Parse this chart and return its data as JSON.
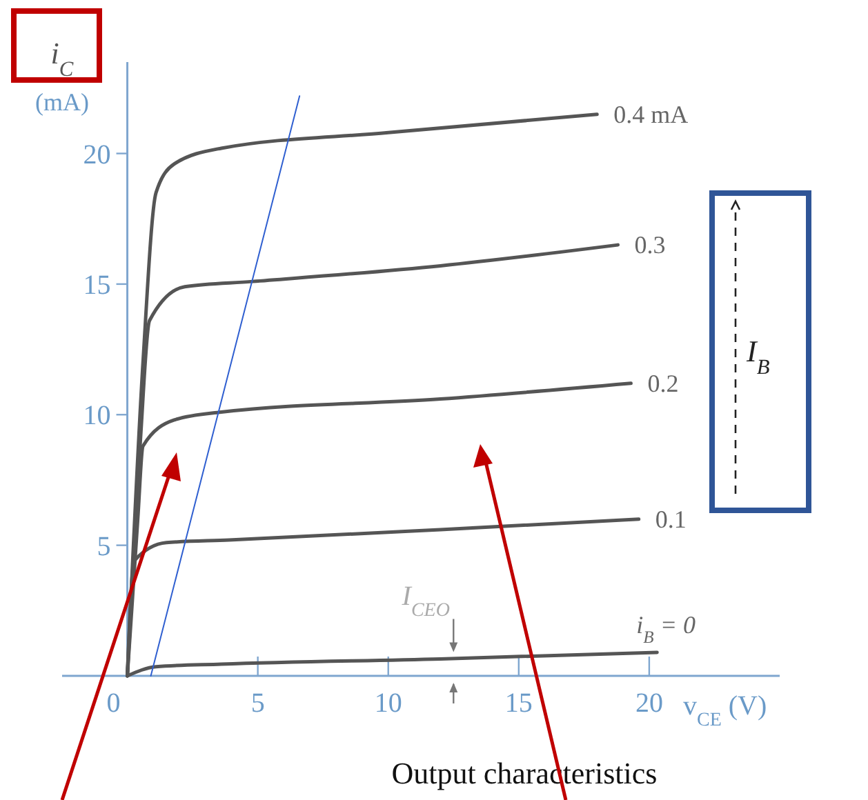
{
  "chart_data": {
    "type": "line",
    "xlabel": "v$_{CE}$ (V)",
    "ylabel": "i$_{C}$ (mA)",
    "xlim": [
      -2.5,
      25
    ],
    "ylim": [
      0,
      23.5
    ],
    "xticks": [
      0,
      5,
      10,
      15,
      20
    ],
    "yticks": [
      5,
      10,
      15,
      20
    ],
    "grid": false,
    "series": [
      {
        "name": "0.4 mA",
        "color": "#555555",
        "x": [
          0,
          0.6,
          1.1,
          1.8,
          3.6,
          10,
          18
        ],
        "values": [
          0,
          12,
          18.5,
          19.6,
          20.2,
          20.8,
          21.5
        ]
      },
      {
        "name": "0.3",
        "color": "#555555",
        "x": [
          0,
          0.5,
          0.85,
          2.2,
          4.8,
          12,
          18.8
        ],
        "values": [
          0,
          9,
          13.6,
          14.9,
          15.1,
          15.7,
          16.5
        ]
      },
      {
        "name": "0.2",
        "color": "#555555",
        "x": [
          0,
          0.4,
          0.6,
          1.8,
          3.6,
          12,
          19.3
        ],
        "values": [
          0,
          6,
          8.8,
          9.8,
          10.1,
          10.6,
          11.2
        ]
      },
      {
        "name": "0.1",
        "color": "#555555",
        "x": [
          0,
          0.26,
          1.5,
          3.9,
          12,
          19.6
        ],
        "values": [
          0,
          4.4,
          5.1,
          5.2,
          5.6,
          6
        ]
      },
      {
        "name": "i$_{B}$ = 0",
        "color": "#555555",
        "x": [
          0,
          1.1,
          3.6,
          12,
          20.3
        ],
        "values": [
          0,
          0.35,
          0.45,
          0.65,
          0.9
        ]
      },
      {
        "color": "#2f5fd0",
        "x": [
          0.9,
          6.6
        ],
        "values": [
          0,
          22.2
        ]
      }
    ],
    "annotations": [
      {
        "text": "I$_{CEO}$",
        "x": 12.5,
        "y": 0.7
      },
      "I$_{B}$",
      "Output characteristics"
    ]
  }
}
